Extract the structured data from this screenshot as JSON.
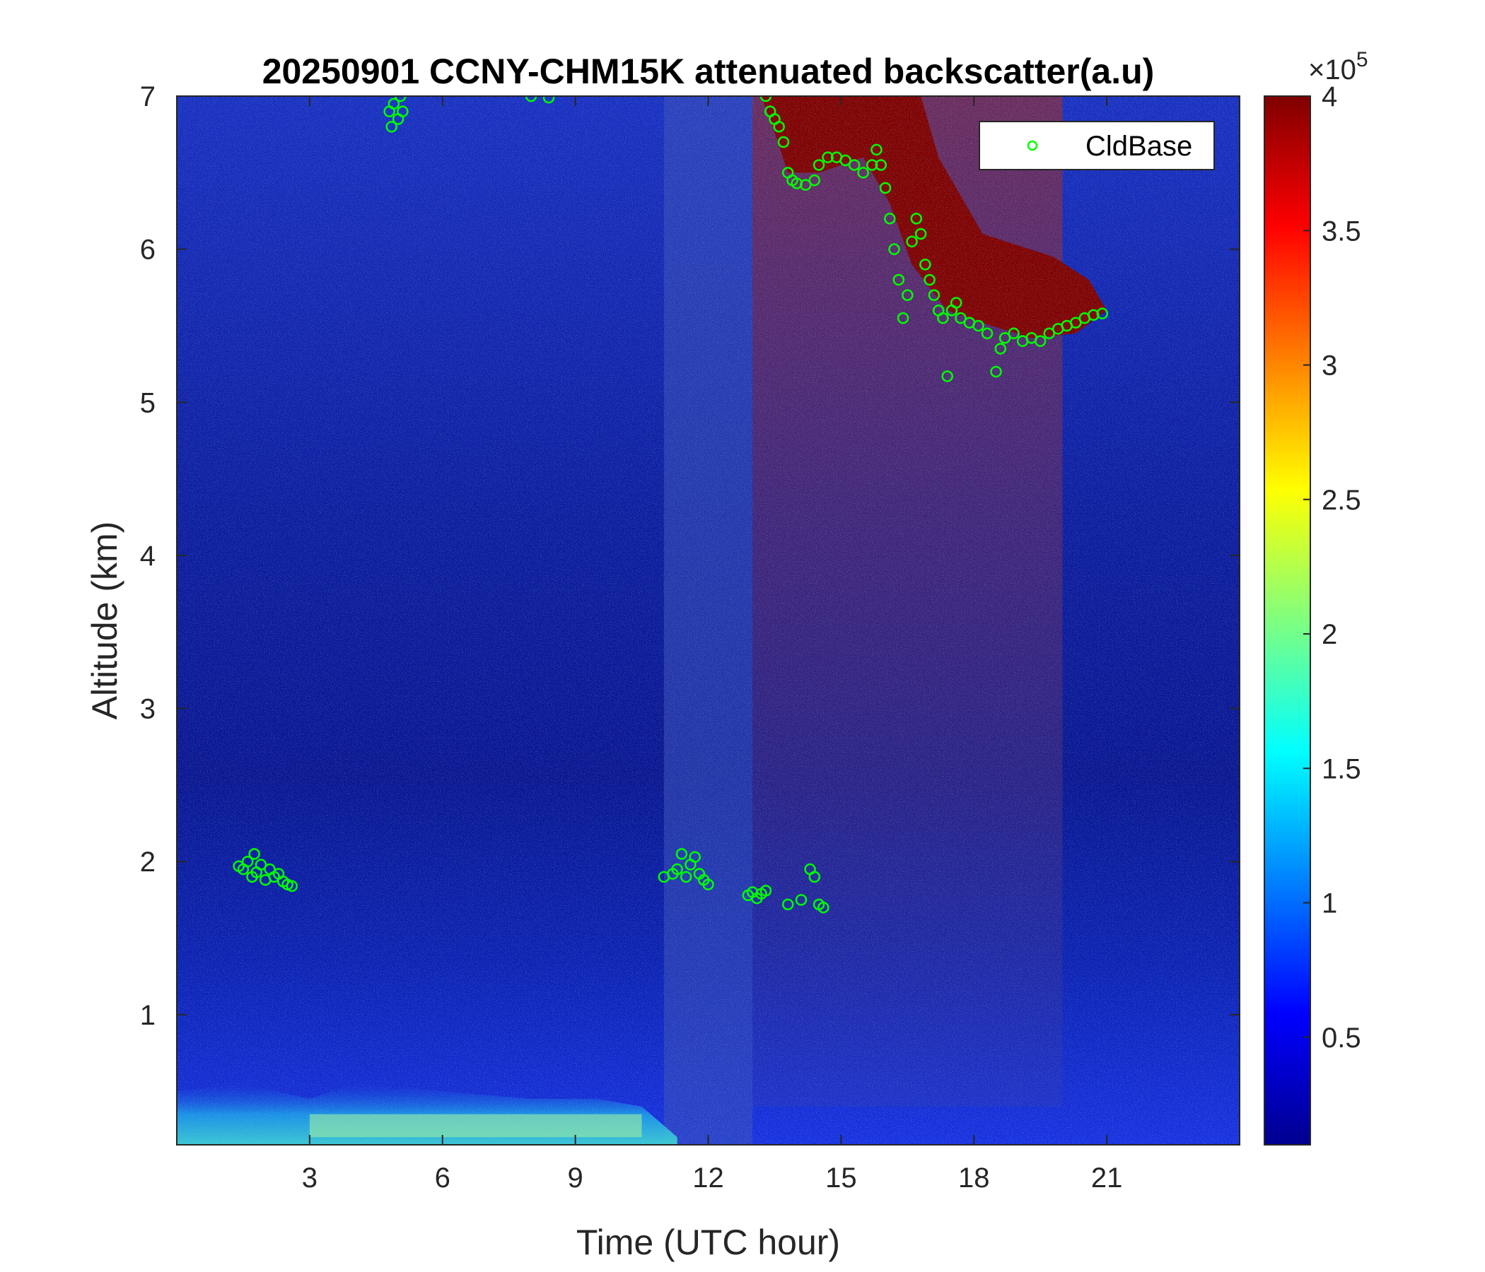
{
  "chart_data": {
    "type": "heatmap",
    "title": "20250901 CCNY-CHM15K attenuated backscatter(a.u)",
    "xlabel": "Time (UTC hour)",
    "ylabel": "Altitude (km)",
    "xlim": [
      0,
      24
    ],
    "ylim": [
      0.15,
      7
    ],
    "xticks": [
      3,
      6,
      9,
      12,
      15,
      18,
      21
    ],
    "yticks": [
      1,
      2,
      3,
      4,
      5,
      6,
      7
    ],
    "colorbar": {
      "colormap": "jet",
      "range": [
        0.1,
        4
      ],
      "ticks": [
        0.5,
        1,
        1.5,
        2,
        2.5,
        3,
        3.5,
        4
      ],
      "tick_labels": [
        "0.5",
        "1",
        "1.5",
        "2",
        "2.5",
        "3",
        "3.5",
        "4"
      ],
      "multiplier_prefix": "×10",
      "multiplier_exponent": "5"
    },
    "legend": {
      "placement": "top-right",
      "entries": [
        {
          "name": "CldBase",
          "marker": "circle",
          "color": "#00ff00"
        }
      ]
    },
    "series": [
      {
        "name": "CldBase",
        "type": "scatter",
        "color": "#00ff00",
        "points": [
          [
            1.4,
            1.97
          ],
          [
            1.5,
            1.95
          ],
          [
            1.6,
            2.0
          ],
          [
            1.7,
            1.9
          ],
          [
            1.75,
            2.05
          ],
          [
            1.8,
            1.93
          ],
          [
            1.9,
            1.98
          ],
          [
            2.0,
            1.88
          ],
          [
            2.1,
            1.95
          ],
          [
            2.2,
            1.9
          ],
          [
            2.3,
            1.92
          ],
          [
            2.4,
            1.87
          ],
          [
            2.5,
            1.85
          ],
          [
            2.6,
            1.84
          ],
          [
            4.8,
            6.9
          ],
          [
            4.85,
            6.8
          ],
          [
            4.9,
            6.95
          ],
          [
            5.0,
            6.85
          ],
          [
            5.05,
            7.0
          ],
          [
            5.1,
            6.9
          ],
          [
            8.0,
            7.0
          ],
          [
            8.4,
            6.99
          ],
          [
            11.0,
            1.9
          ],
          [
            11.2,
            1.92
          ],
          [
            11.3,
            1.95
          ],
          [
            11.4,
            2.05
          ],
          [
            11.5,
            1.9
          ],
          [
            11.6,
            1.98
          ],
          [
            11.7,
            2.03
          ],
          [
            11.8,
            1.92
          ],
          [
            11.9,
            1.88
          ],
          [
            12.0,
            1.85
          ],
          [
            12.9,
            1.78
          ],
          [
            13.0,
            1.8
          ],
          [
            13.1,
            1.76
          ],
          [
            13.2,
            1.79
          ],
          [
            13.3,
            1.81
          ],
          [
            13.8,
            1.72
          ],
          [
            14.1,
            1.75
          ],
          [
            14.3,
            1.95
          ],
          [
            14.4,
            1.9
          ],
          [
            14.5,
            1.72
          ],
          [
            14.6,
            1.7
          ],
          [
            13.3,
            7.0
          ],
          [
            13.4,
            6.9
          ],
          [
            13.5,
            6.85
          ],
          [
            13.6,
            6.8
          ],
          [
            13.7,
            6.7
          ],
          [
            13.8,
            6.5
          ],
          [
            13.9,
            6.45
          ],
          [
            14.0,
            6.43
          ],
          [
            14.2,
            6.42
          ],
          [
            14.4,
            6.45
          ],
          [
            14.5,
            6.55
          ],
          [
            14.7,
            6.6
          ],
          [
            14.9,
            6.6
          ],
          [
            15.1,
            6.58
          ],
          [
            15.3,
            6.55
          ],
          [
            15.5,
            6.5
          ],
          [
            15.7,
            6.55
          ],
          [
            15.8,
            6.65
          ],
          [
            15.9,
            6.55
          ],
          [
            16.0,
            6.4
          ],
          [
            16.1,
            6.2
          ],
          [
            16.2,
            6.0
          ],
          [
            16.3,
            5.8
          ],
          [
            16.4,
            5.55
          ],
          [
            16.5,
            5.7
          ],
          [
            16.6,
            6.05
          ],
          [
            16.7,
            6.2
          ],
          [
            16.8,
            6.1
          ],
          [
            16.9,
            5.9
          ],
          [
            17.0,
            5.8
          ],
          [
            17.1,
            5.7
          ],
          [
            17.2,
            5.6
          ],
          [
            17.3,
            5.55
          ],
          [
            17.5,
            5.6
          ],
          [
            17.6,
            5.65
          ],
          [
            17.7,
            5.55
          ],
          [
            17.9,
            5.52
          ],
          [
            18.1,
            5.5
          ],
          [
            18.3,
            5.45
          ],
          [
            17.4,
            5.17
          ],
          [
            18.5,
            5.2
          ],
          [
            18.6,
            5.35
          ],
          [
            18.7,
            5.42
          ],
          [
            18.9,
            5.45
          ],
          [
            19.1,
            5.4
          ],
          [
            19.3,
            5.42
          ],
          [
            19.5,
            5.4
          ],
          [
            19.7,
            5.45
          ],
          [
            19.9,
            5.48
          ],
          [
            20.1,
            5.5
          ],
          [
            20.3,
            5.52
          ],
          [
            20.5,
            5.55
          ],
          [
            20.7,
            5.57
          ],
          [
            20.9,
            5.58
          ]
        ]
      }
    ]
  }
}
